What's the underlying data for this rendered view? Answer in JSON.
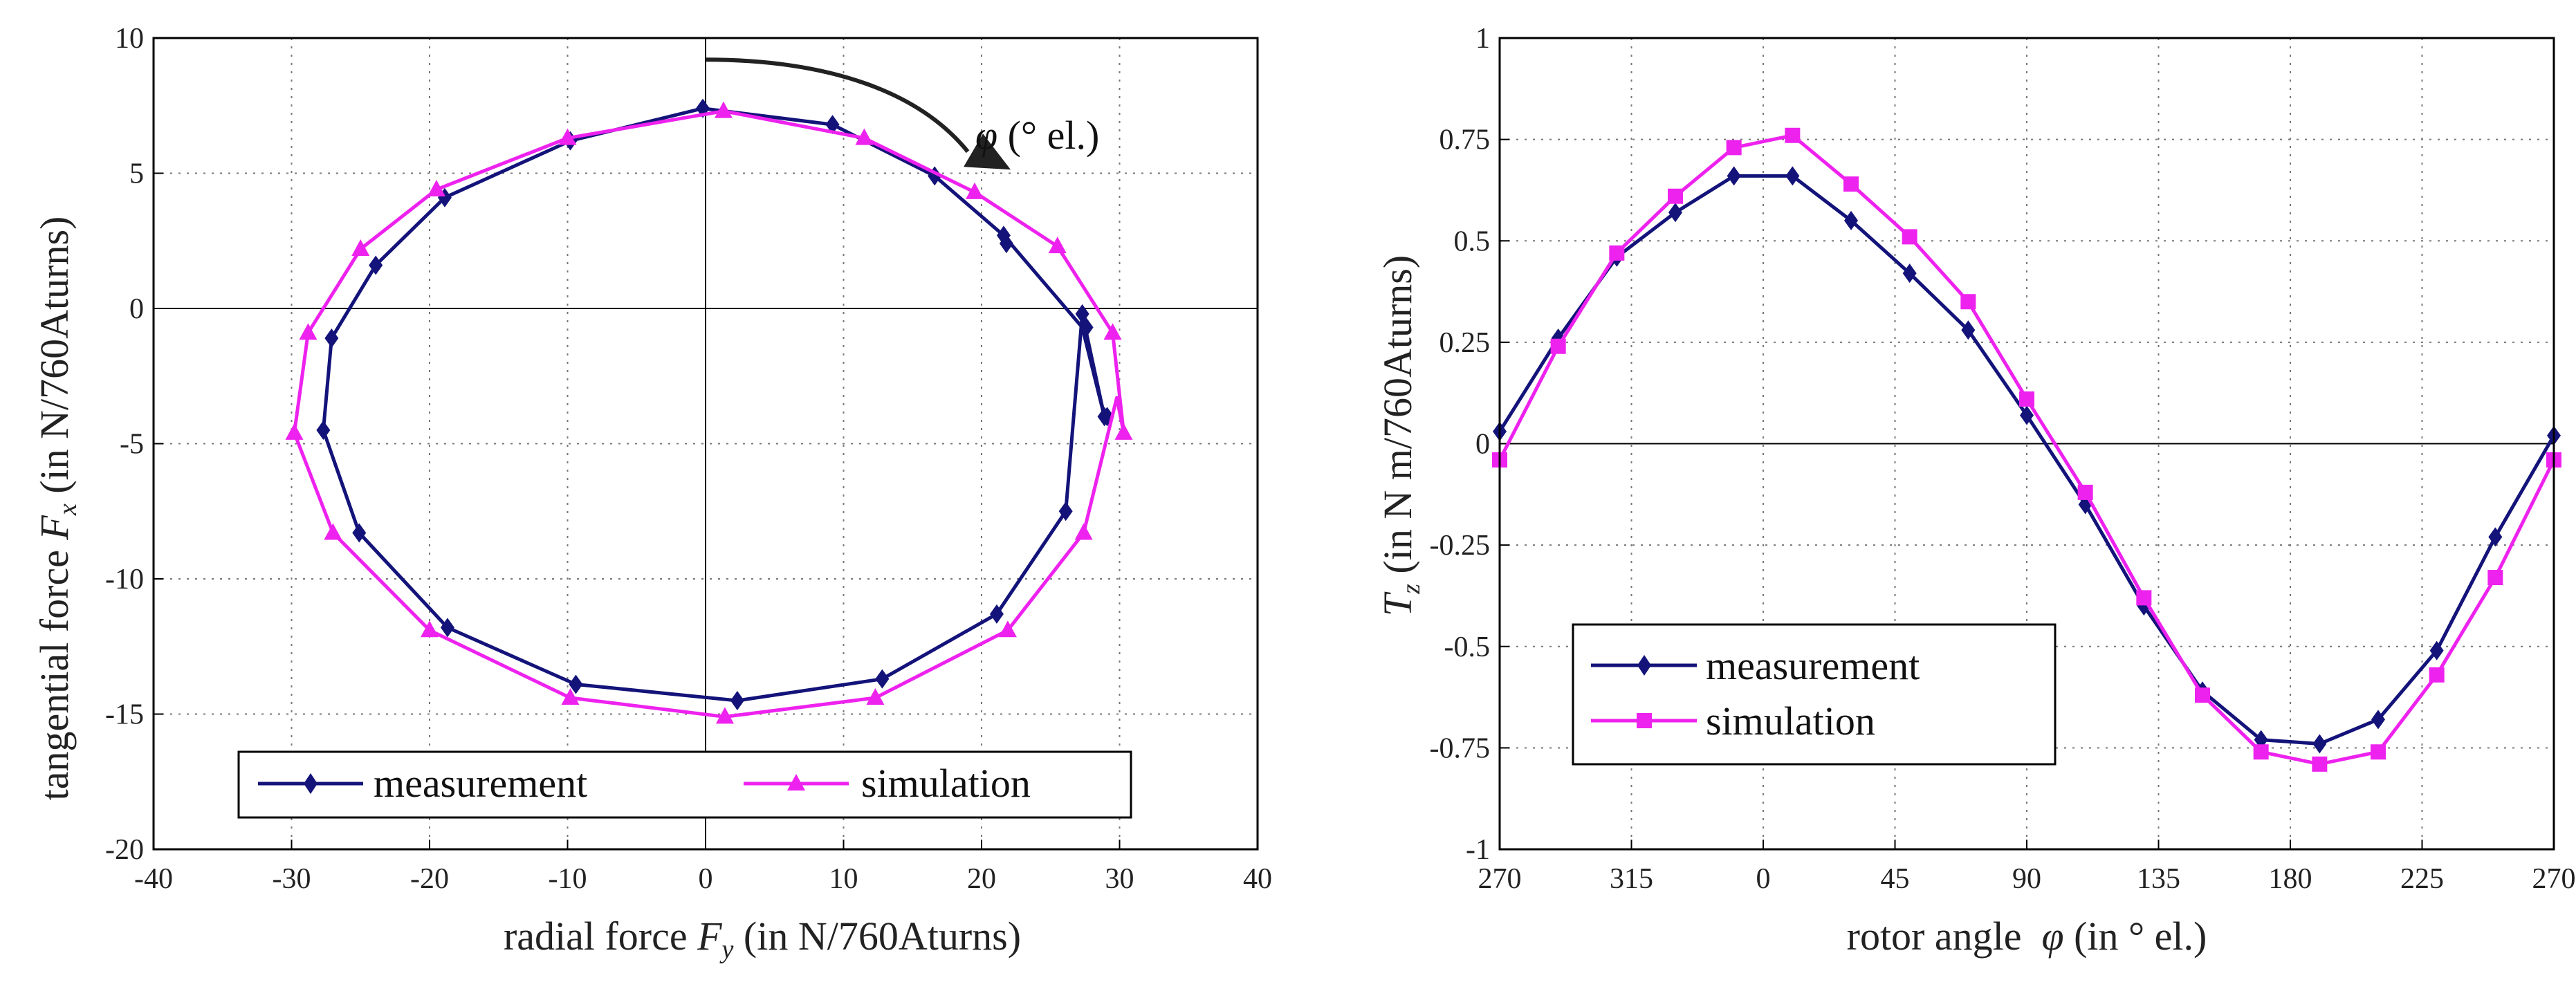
{
  "chart_data": [
    {
      "type": "line",
      "xlabel": {
        "prefix": "radial force ",
        "sym": "F",
        "sub": "y",
        "suffix": " (in N/760Aturns)"
      },
      "ylabel": {
        "prefix": "tangential force ",
        "sym": "F",
        "sub": "x",
        "suffix": " (in N/760Aturns)"
      },
      "xlim": [
        -40,
        40
      ],
      "ylim": [
        -20,
        10
      ],
      "xticks": [
        "-40",
        "-30",
        "-20",
        "-10",
        "0",
        "10",
        "20",
        "30",
        "40"
      ],
      "yticks": [
        "10",
        "5",
        "0",
        "-5",
        "-10",
        "-15",
        "-20"
      ],
      "grid": true,
      "annotation": {
        "sym": "φ",
        "text": " (° el.)"
      },
      "legend": {
        "position": "bottom",
        "entries": [
          "measurement",
          "simulation"
        ]
      },
      "series": [
        {
          "name": "measurement",
          "color": "#13137a",
          "marker": "diamond",
          "x": [
            -0.2,
            9.2,
            16.6,
            21.6,
            27.3,
            28.9,
            28.9,
            27.3,
            26.1,
            21.1,
            12.8,
            2.3,
            -9.4,
            -18.7,
            -25.1,
            -27.7,
            -27.1,
            -23.9,
            -18.9,
            -9.8,
            -0.2
          ],
          "y": [
            7.4,
            6.8,
            4.9,
            2.7,
            -0.7,
            -4.0,
            -4.0,
            -0.2,
            -7.5,
            -11.3,
            -13.7,
            -14.5,
            -13.9,
            -11.8,
            -8.3,
            -4.5,
            -1.1,
            1.6,
            4.1,
            6.2,
            7.4
          ],
          "markers_x": [
            -0.2,
            9.2,
            16.6,
            21.6,
            21.8,
            27.3,
            27.6,
            28.9,
            29.1,
            26.1,
            21.1,
            12.8,
            2.3,
            -9.4,
            -18.7,
            -25.1,
            -27.7,
            -27.1,
            -23.9,
            -18.9,
            -9.8
          ],
          "markers_y": [
            7.4,
            6.8,
            4.9,
            2.7,
            2.4,
            -0.2,
            -0.7,
            -4.0,
            -4.0,
            -7.5,
            -11.3,
            -13.7,
            -14.5,
            -13.9,
            -11.8,
            -8.3,
            -4.5,
            -1.1,
            1.6,
            4.1,
            6.2
          ]
        },
        {
          "name": "simulation",
          "color": "#ee22ee",
          "marker": "triangle",
          "x": [
            1.3,
            11.5,
            19.5,
            25.5,
            29.5,
            30.3,
            29.8,
            27.4,
            21.9,
            12.3,
            1.4,
            -9.8,
            -20.0,
            -27.0,
            -29.8,
            -28.8,
            -25.0,
            -19.5,
            -10.0,
            1.3
          ],
          "y": [
            7.3,
            6.3,
            4.3,
            2.3,
            -0.9,
            -4.6,
            -3.3,
            -8.3,
            -11.9,
            -14.4,
            -15.1,
            -14.4,
            -11.9,
            -8.3,
            -4.6,
            -0.9,
            2.2,
            4.4,
            6.3,
            7.3
          ],
          "markers_x": [
            1.3,
            11.5,
            19.5,
            25.5,
            29.5,
            30.3,
            27.4,
            21.9,
            12.3,
            1.4,
            -9.8,
            -20.0,
            -27.0,
            -29.8,
            -28.8,
            -25.0,
            -19.5,
            -10.0
          ],
          "markers_y": [
            7.3,
            6.3,
            4.3,
            2.3,
            -0.9,
            -4.6,
            -8.3,
            -11.9,
            -14.4,
            -15.1,
            -14.4,
            -11.9,
            -8.3,
            -4.6,
            -0.9,
            2.2,
            4.4,
            6.3
          ]
        }
      ]
    },
    {
      "type": "line",
      "xlabel": {
        "prefix": "rotor angle  ",
        "sym": "φ",
        "suffix": " (in ° el.)"
      },
      "ylabel": {
        "sym": "T",
        "sub": "z",
        "suffix": " (in N m/760Aturns)"
      },
      "xlim": [
        -90,
        270
      ],
      "ylim": [
        -1,
        1
      ],
      "xticks_values": [
        -90,
        -45,
        0,
        45,
        90,
        135,
        180,
        225,
        270
      ],
      "xticks": [
        "270",
        "315",
        "0",
        "45",
        "90",
        "135",
        "180",
        "225",
        "270"
      ],
      "yticks_values": [
        1,
        0.75,
        0.5,
        0.25,
        0,
        -0.25,
        -0.5,
        -0.75,
        -1
      ],
      "yticks": [
        "1",
        "0.75",
        "0.5",
        "0.25",
        "0",
        "-0.25",
        "-0.5",
        "-0.75",
        "-1"
      ],
      "grid": true,
      "legend": {
        "position": "bottom-left",
        "entries": [
          "measurement",
          "simulation"
        ]
      },
      "series": [
        {
          "name": "measurement",
          "color": "#13137a",
          "marker": "diamond",
          "x": [
            -90,
            -70,
            -50,
            -30,
            -10,
            10,
            30,
            50,
            70,
            90,
            110,
            130,
            150,
            170,
            190,
            210,
            230,
            250,
            270
          ],
          "y": [
            0.03,
            0.26,
            0.46,
            0.57,
            0.66,
            0.66,
            0.55,
            0.42,
            0.28,
            0.07,
            -0.15,
            -0.4,
            -0.61,
            -0.73,
            -0.74,
            -0.68,
            -0.51,
            -0.23,
            0.02
          ]
        },
        {
          "name": "simulation",
          "color": "#ee22ee",
          "marker": "square",
          "x": [
            -90,
            -70,
            -50,
            -30,
            -10,
            10,
            30,
            50,
            70,
            90,
            110,
            130,
            150,
            170,
            190,
            210,
            230,
            250,
            270
          ],
          "y": [
            -0.04,
            0.24,
            0.47,
            0.61,
            0.73,
            0.76,
            0.64,
            0.51,
            0.35,
            0.11,
            -0.12,
            -0.38,
            -0.62,
            -0.76,
            -0.79,
            -0.76,
            -0.57,
            -0.33,
            -0.04
          ]
        }
      ]
    }
  ]
}
